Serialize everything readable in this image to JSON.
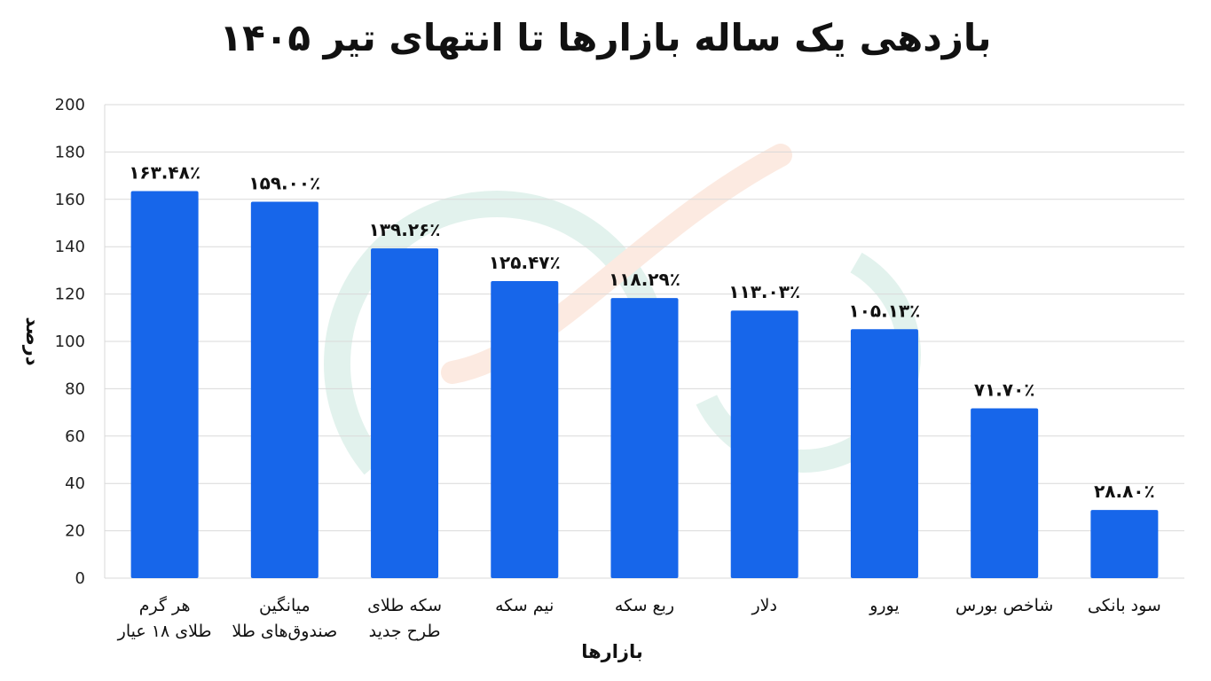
{
  "chart_data": {
    "type": "bar",
    "title": "بازدهی یک ساله بازارها تا انتهای تیر ۱۴۰۵",
    "xlabel": "بازارها",
    "ylabel": "درصد",
    "ylim": [
      0,
      200
    ],
    "yticks": [
      0,
      20,
      40,
      60,
      80,
      100,
      120,
      140,
      160,
      180,
      200
    ],
    "grid": true,
    "bar_color": "#1766ea",
    "categories": [
      [
        "هر گرم",
        "طلای ۱۸ عیار"
      ],
      [
        "میانگین",
        "صندوق‌های طلا"
      ],
      [
        "سکه طلای",
        "طرح جدید"
      ],
      [
        "نیم سکه"
      ],
      [
        "ربع سکه"
      ],
      [
        "دلار"
      ],
      [
        "یورو"
      ],
      [
        "شاخص بورس"
      ],
      [
        "سود بانکی"
      ]
    ],
    "values": [
      163.48,
      159.0,
      139.26,
      125.47,
      118.29,
      113.03,
      105.13,
      71.7,
      28.8
    ],
    "value_labels": [
      "۱۶۳.۴۸٪",
      "۱۵۹.۰۰٪",
      "۱۳۹.۲۶٪",
      "۱۲۵.۴۷٪",
      "۱۱۸.۲۹٪",
      "۱۱۳.۰۳٪",
      "۱۰۵.۱۳٪",
      "۷۱.۷۰٪",
      "۲۸.۸۰٪"
    ]
  }
}
